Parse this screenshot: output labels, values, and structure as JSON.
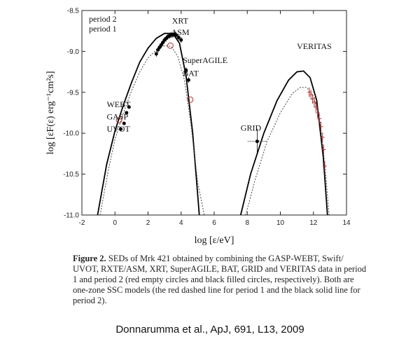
{
  "chart_data": {
    "type": "scatter",
    "xlabel": "log [ε/eV]",
    "ylabel": "log [εF(ε) erg⁻¹cm²s]",
    "xlim": [
      -2,
      14
    ],
    "ylim": [
      -11.0,
      -8.5
    ],
    "xticks": [
      "-2",
      "0",
      "2",
      "4",
      "6",
      "8",
      "10",
      "12",
      "14"
    ],
    "yticks": [
      "-8.5",
      "-9.0",
      "-9.5",
      "-10.0",
      "-10.5",
      "-11.0"
    ],
    "x_tick_values": [
      -2,
      0,
      2,
      4,
      6,
      8,
      10,
      12,
      14
    ],
    "y_tick_values": [
      -8.5,
      -9.0,
      -9.5,
      -10.0,
      -10.5,
      -11.0
    ],
    "legend": {
      "placement": "top-left",
      "entries": [
        {
          "label": "period 2",
          "color": "#000000"
        },
        {
          "label": "period 1",
          "color": "#a03030"
        }
      ]
    },
    "annotations": [
      {
        "text": "XRT",
        "x": 3.45,
        "y": -8.66
      },
      {
        "text": "ASM",
        "x": 3.4,
        "y": -8.8
      },
      {
        "text": "SuperAGILE",
        "x": 4.1,
        "y": -9.14
      },
      {
        "text": "BAT",
        "x": 4.1,
        "y": -9.3
      },
      {
        "text": "VERITAS",
        "x": 11.0,
        "y": -8.97
      },
      {
        "text": "WEBT",
        "x": -0.5,
        "y": -9.68
      },
      {
        "text": "GASP",
        "x": -0.5,
        "y": -9.83
      },
      {
        "text": "UVOT",
        "x": -0.5,
        "y": -9.98
      },
      {
        "text": "GRID",
        "x": 7.6,
        "y": -9.97
      }
    ],
    "series": [
      {
        "name": "period 2",
        "kind": "model-solid",
        "color": "#000000",
        "x": [
          -1.05,
          -0.5,
          0.0,
          0.5,
          1.0,
          1.5,
          2.0,
          2.5,
          3.0,
          3.5,
          3.9,
          4.3,
          4.7,
          5.0,
          5.1
        ],
        "y": [
          -11.0,
          -10.38,
          -9.97,
          -9.66,
          -9.38,
          -9.13,
          -8.96,
          -8.84,
          -8.78,
          -8.78,
          -8.9,
          -9.3,
          -10.0,
          -10.75,
          -11.0
        ]
      },
      {
        "name": "period 1",
        "kind": "model-dashed",
        "color": "#444444",
        "x": [
          -0.9,
          -0.4,
          0.0,
          0.5,
          1.0,
          1.5,
          2.0,
          2.5,
          3.0,
          3.4,
          3.8,
          4.2,
          4.6,
          5.0,
          5.4
        ],
        "y": [
          -11.0,
          -10.45,
          -10.07,
          -9.76,
          -9.48,
          -9.25,
          -9.08,
          -8.98,
          -8.93,
          -8.94,
          -9.06,
          -9.35,
          -9.9,
          -10.6,
          -11.0
        ]
      },
      {
        "name": "period 2 IC",
        "kind": "model-solid",
        "color": "#000000",
        "x": [
          7.6,
          8.2,
          9.0,
          9.8,
          10.5,
          11.0,
          11.4,
          11.8,
          12.2,
          12.6,
          12.85
        ],
        "y": [
          -11.0,
          -10.5,
          -10.0,
          -9.6,
          -9.35,
          -9.25,
          -9.24,
          -9.32,
          -9.6,
          -10.3,
          -11.0
        ]
      },
      {
        "name": "period 1 IC",
        "kind": "model-dashed",
        "color": "#444444",
        "x": [
          7.9,
          8.5,
          9.2,
          10.0,
          10.7,
          11.2,
          11.6,
          12.0,
          12.4,
          12.7,
          12.95
        ],
        "y": [
          -11.0,
          -10.55,
          -10.1,
          -9.75,
          -9.52,
          -9.44,
          -9.44,
          -9.55,
          -9.85,
          -10.4,
          -11.0
        ]
      },
      {
        "name": "period 2 data",
        "kind": "filled-circles",
        "color": "#000000",
        "x": [
          0.35,
          0.55,
          0.7,
          0.85,
          2.5,
          2.6,
          2.7,
          2.8,
          2.9,
          3.0,
          3.1,
          3.2,
          3.3,
          3.4,
          3.5,
          3.6,
          3.7,
          3.85,
          4.0,
          4.3,
          4.45,
          8.6
        ],
        "y": [
          -9.95,
          -9.88,
          -9.75,
          -9.68,
          -9.03,
          -8.98,
          -8.95,
          -8.92,
          -8.89,
          -8.86,
          -8.84,
          -8.82,
          -8.81,
          -8.8,
          -8.8,
          -8.79,
          -8.8,
          -8.83,
          -8.86,
          -9.23,
          -9.35,
          -10.1
        ]
      },
      {
        "name": "period 1 data",
        "kind": "open-circles",
        "color": "#b03030",
        "x": [
          0.25,
          3.35,
          4.55
        ],
        "y": [
          -9.84,
          -8.93,
          -9.59
        ]
      },
      {
        "name": "VERITAS data",
        "kind": "errorbars",
        "color": "#b03030",
        "x": [
          11.75,
          11.85,
          11.95,
          12.05,
          12.15,
          12.25,
          12.35,
          12.45,
          12.55,
          12.62,
          12.68
        ],
        "y": [
          -9.5,
          -9.53,
          -9.58,
          -9.62,
          -9.68,
          -9.75,
          -9.82,
          -9.92,
          -10.05,
          -10.2,
          -10.4
        ]
      }
    ]
  },
  "caption": {
    "label": "Figure 2.",
    "text": " SEDs of Mrk 421 obtained by combining the GASP-WEBT, Swift/ UVOT, RXTE/ASM, XRT, SuperAGILE, BAT, GRID and VERITAS data in period 1 and period 2 (red empty circles and black filled circles, respectively). Both are one-zone SSC models (the red dashed line for period 1 and the black solid line for period 2)."
  },
  "citation": "Donnarumma et al., ApJ, 691, L13, 2009"
}
